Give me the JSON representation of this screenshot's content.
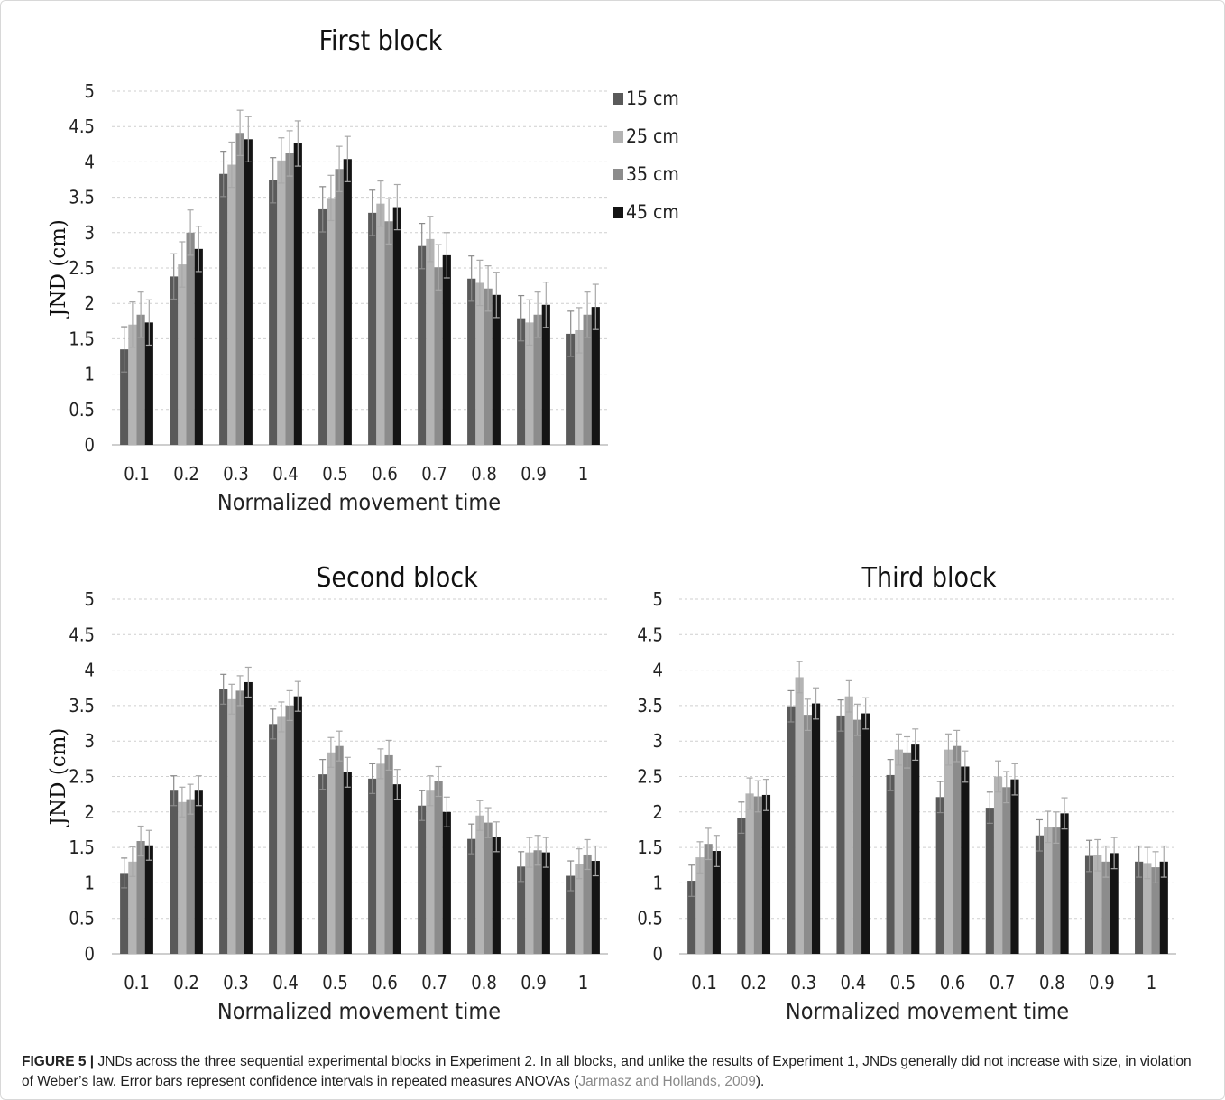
{
  "chart_data": [
    {
      "type": "bar",
      "title": "First block",
      "xlabel": "Normalized movement  time",
      "ylabel": "JND (cm)",
      "ylim": [
        0,
        5
      ],
      "yticks": [
        "0",
        "0.5",
        "1",
        "1.5",
        "2",
        "2.5",
        "3",
        "3.5",
        "4",
        "4.5",
        "5"
      ],
      "categories": [
        "0.1",
        "0.2",
        "0.3",
        "0.4",
        "0.5",
        "0.6",
        "0.7",
        "0.8",
        "0.9",
        "1"
      ],
      "legend_position": "right",
      "series": [
        {
          "name": "15 cm",
          "values": [
            1.35,
            2.38,
            3.83,
            3.74,
            3.33,
            3.28,
            2.81,
            2.35,
            1.79,
            1.57
          ],
          "error": [
            0.32,
            0.32,
            0.32,
            0.32,
            0.32,
            0.32,
            0.32,
            0.32,
            0.32,
            0.32
          ]
        },
        {
          "name": "25 cm",
          "values": [
            1.7,
            2.55,
            3.96,
            4.02,
            3.49,
            3.41,
            2.91,
            2.29,
            1.73,
            1.62
          ],
          "error": [
            0.32,
            0.32,
            0.32,
            0.32,
            0.32,
            0.32,
            0.32,
            0.32,
            0.32,
            0.32
          ]
        },
        {
          "name": "35 cm",
          "values": [
            1.84,
            3.0,
            4.41,
            4.12,
            3.9,
            3.16,
            2.51,
            2.21,
            1.84,
            1.84
          ],
          "error": [
            0.32,
            0.32,
            0.32,
            0.32,
            0.32,
            0.32,
            0.32,
            0.32,
            0.32,
            0.32
          ]
        },
        {
          "name": "45 cm",
          "values": [
            1.73,
            2.77,
            4.32,
            4.26,
            4.04,
            3.36,
            2.68,
            2.12,
            1.98,
            1.95
          ],
          "error": [
            0.32,
            0.32,
            0.32,
            0.32,
            0.32,
            0.32,
            0.32,
            0.32,
            0.32,
            0.32
          ]
        }
      ]
    },
    {
      "type": "bar",
      "title": "Second block",
      "xlabel": "Normalized movement  time",
      "ylabel": "JND (cm)",
      "ylim": [
        0,
        5
      ],
      "yticks": [
        "0",
        "0.5",
        "1",
        "1.5",
        "2",
        "2.5",
        "3",
        "3.5",
        "4",
        "4.5",
        "5"
      ],
      "categories": [
        "0.1",
        "0.2",
        "0.3",
        "0.4",
        "0.5",
        "0.6",
        "0.7",
        "0.8",
        "0.9",
        "1"
      ],
      "series": [
        {
          "name": "15 cm",
          "values": [
            1.14,
            2.3,
            3.73,
            3.24,
            2.53,
            2.47,
            2.09,
            1.62,
            1.23,
            1.1
          ],
          "error": [
            0.21,
            0.21,
            0.21,
            0.21,
            0.21,
            0.21,
            0.21,
            0.21,
            0.21,
            0.21
          ]
        },
        {
          "name": "25 cm",
          "values": [
            1.3,
            2.14,
            3.59,
            3.34,
            2.84,
            2.68,
            2.3,
            1.95,
            1.43,
            1.27
          ],
          "error": [
            0.21,
            0.21,
            0.21,
            0.21,
            0.21,
            0.21,
            0.21,
            0.21,
            0.21,
            0.21
          ]
        },
        {
          "name": "35 cm",
          "values": [
            1.59,
            2.18,
            3.71,
            3.5,
            2.93,
            2.8,
            2.43,
            1.85,
            1.46,
            1.4
          ],
          "error": [
            0.21,
            0.21,
            0.21,
            0.21,
            0.21,
            0.21,
            0.21,
            0.21,
            0.21,
            0.21
          ]
        },
        {
          "name": "45 cm",
          "values": [
            1.53,
            2.3,
            3.83,
            3.63,
            2.56,
            2.39,
            2.0,
            1.65,
            1.43,
            1.31
          ],
          "error": [
            0.21,
            0.21,
            0.21,
            0.21,
            0.21,
            0.21,
            0.21,
            0.21,
            0.21,
            0.21
          ]
        }
      ]
    },
    {
      "type": "bar",
      "title": "Third block",
      "xlabel": "Normalized movement  time",
      "ylabel": "",
      "ylim": [
        0,
        5
      ],
      "yticks": [
        "0",
        "0.5",
        "1",
        "1.5",
        "2",
        "2.5",
        "3",
        "3.5",
        "4",
        "4.5",
        "5"
      ],
      "categories": [
        "0.1",
        "0.2",
        "0.3",
        "0.4",
        "0.5",
        "0.6",
        "0.7",
        "0.8",
        "0.9",
        "1"
      ],
      "series": [
        {
          "name": "15 cm",
          "values": [
            1.03,
            1.92,
            3.49,
            3.36,
            2.52,
            2.21,
            2.06,
            1.67,
            1.38,
            1.3
          ],
          "error": [
            0.22,
            0.22,
            0.22,
            0.22,
            0.22,
            0.22,
            0.22,
            0.22,
            0.22,
            0.22
          ]
        },
        {
          "name": "25 cm",
          "values": [
            1.36,
            2.26,
            3.9,
            3.63,
            2.88,
            2.88,
            2.5,
            1.79,
            1.39,
            1.28
          ],
          "error": [
            0.22,
            0.22,
            0.22,
            0.22,
            0.22,
            0.22,
            0.22,
            0.22,
            0.22,
            0.22
          ]
        },
        {
          "name": "35 cm",
          "values": [
            1.55,
            2.22,
            3.37,
            3.3,
            2.84,
            2.93,
            2.35,
            1.78,
            1.3,
            1.22
          ],
          "error": [
            0.22,
            0.22,
            0.22,
            0.22,
            0.22,
            0.22,
            0.22,
            0.22,
            0.22,
            0.22
          ]
        },
        {
          "name": "45 cm",
          "values": [
            1.45,
            2.24,
            3.53,
            3.39,
            2.95,
            2.64,
            2.46,
            1.98,
            1.42,
            1.3
          ],
          "error": [
            0.22,
            0.22,
            0.22,
            0.22,
            0.22,
            0.22,
            0.22,
            0.22,
            0.22,
            0.22
          ]
        }
      ]
    }
  ],
  "series_colors": [
    "#5a5a5a",
    "#b4b4b4",
    "#8c8c8c",
    "#141414"
  ],
  "caption": {
    "label": "FIGURE 5 |",
    "text": " JNDs across the three sequential experimental blocks in Experiment 2. In all blocks, and unlike the results of Experiment 1, JNDs generally did not increase with size, in violation of Weber’s law. Error bars represent confidence intervals in repeated measures ANOVAs (",
    "reference": "Jarmasz and Hollands, 2009",
    "suffix": ")."
  }
}
